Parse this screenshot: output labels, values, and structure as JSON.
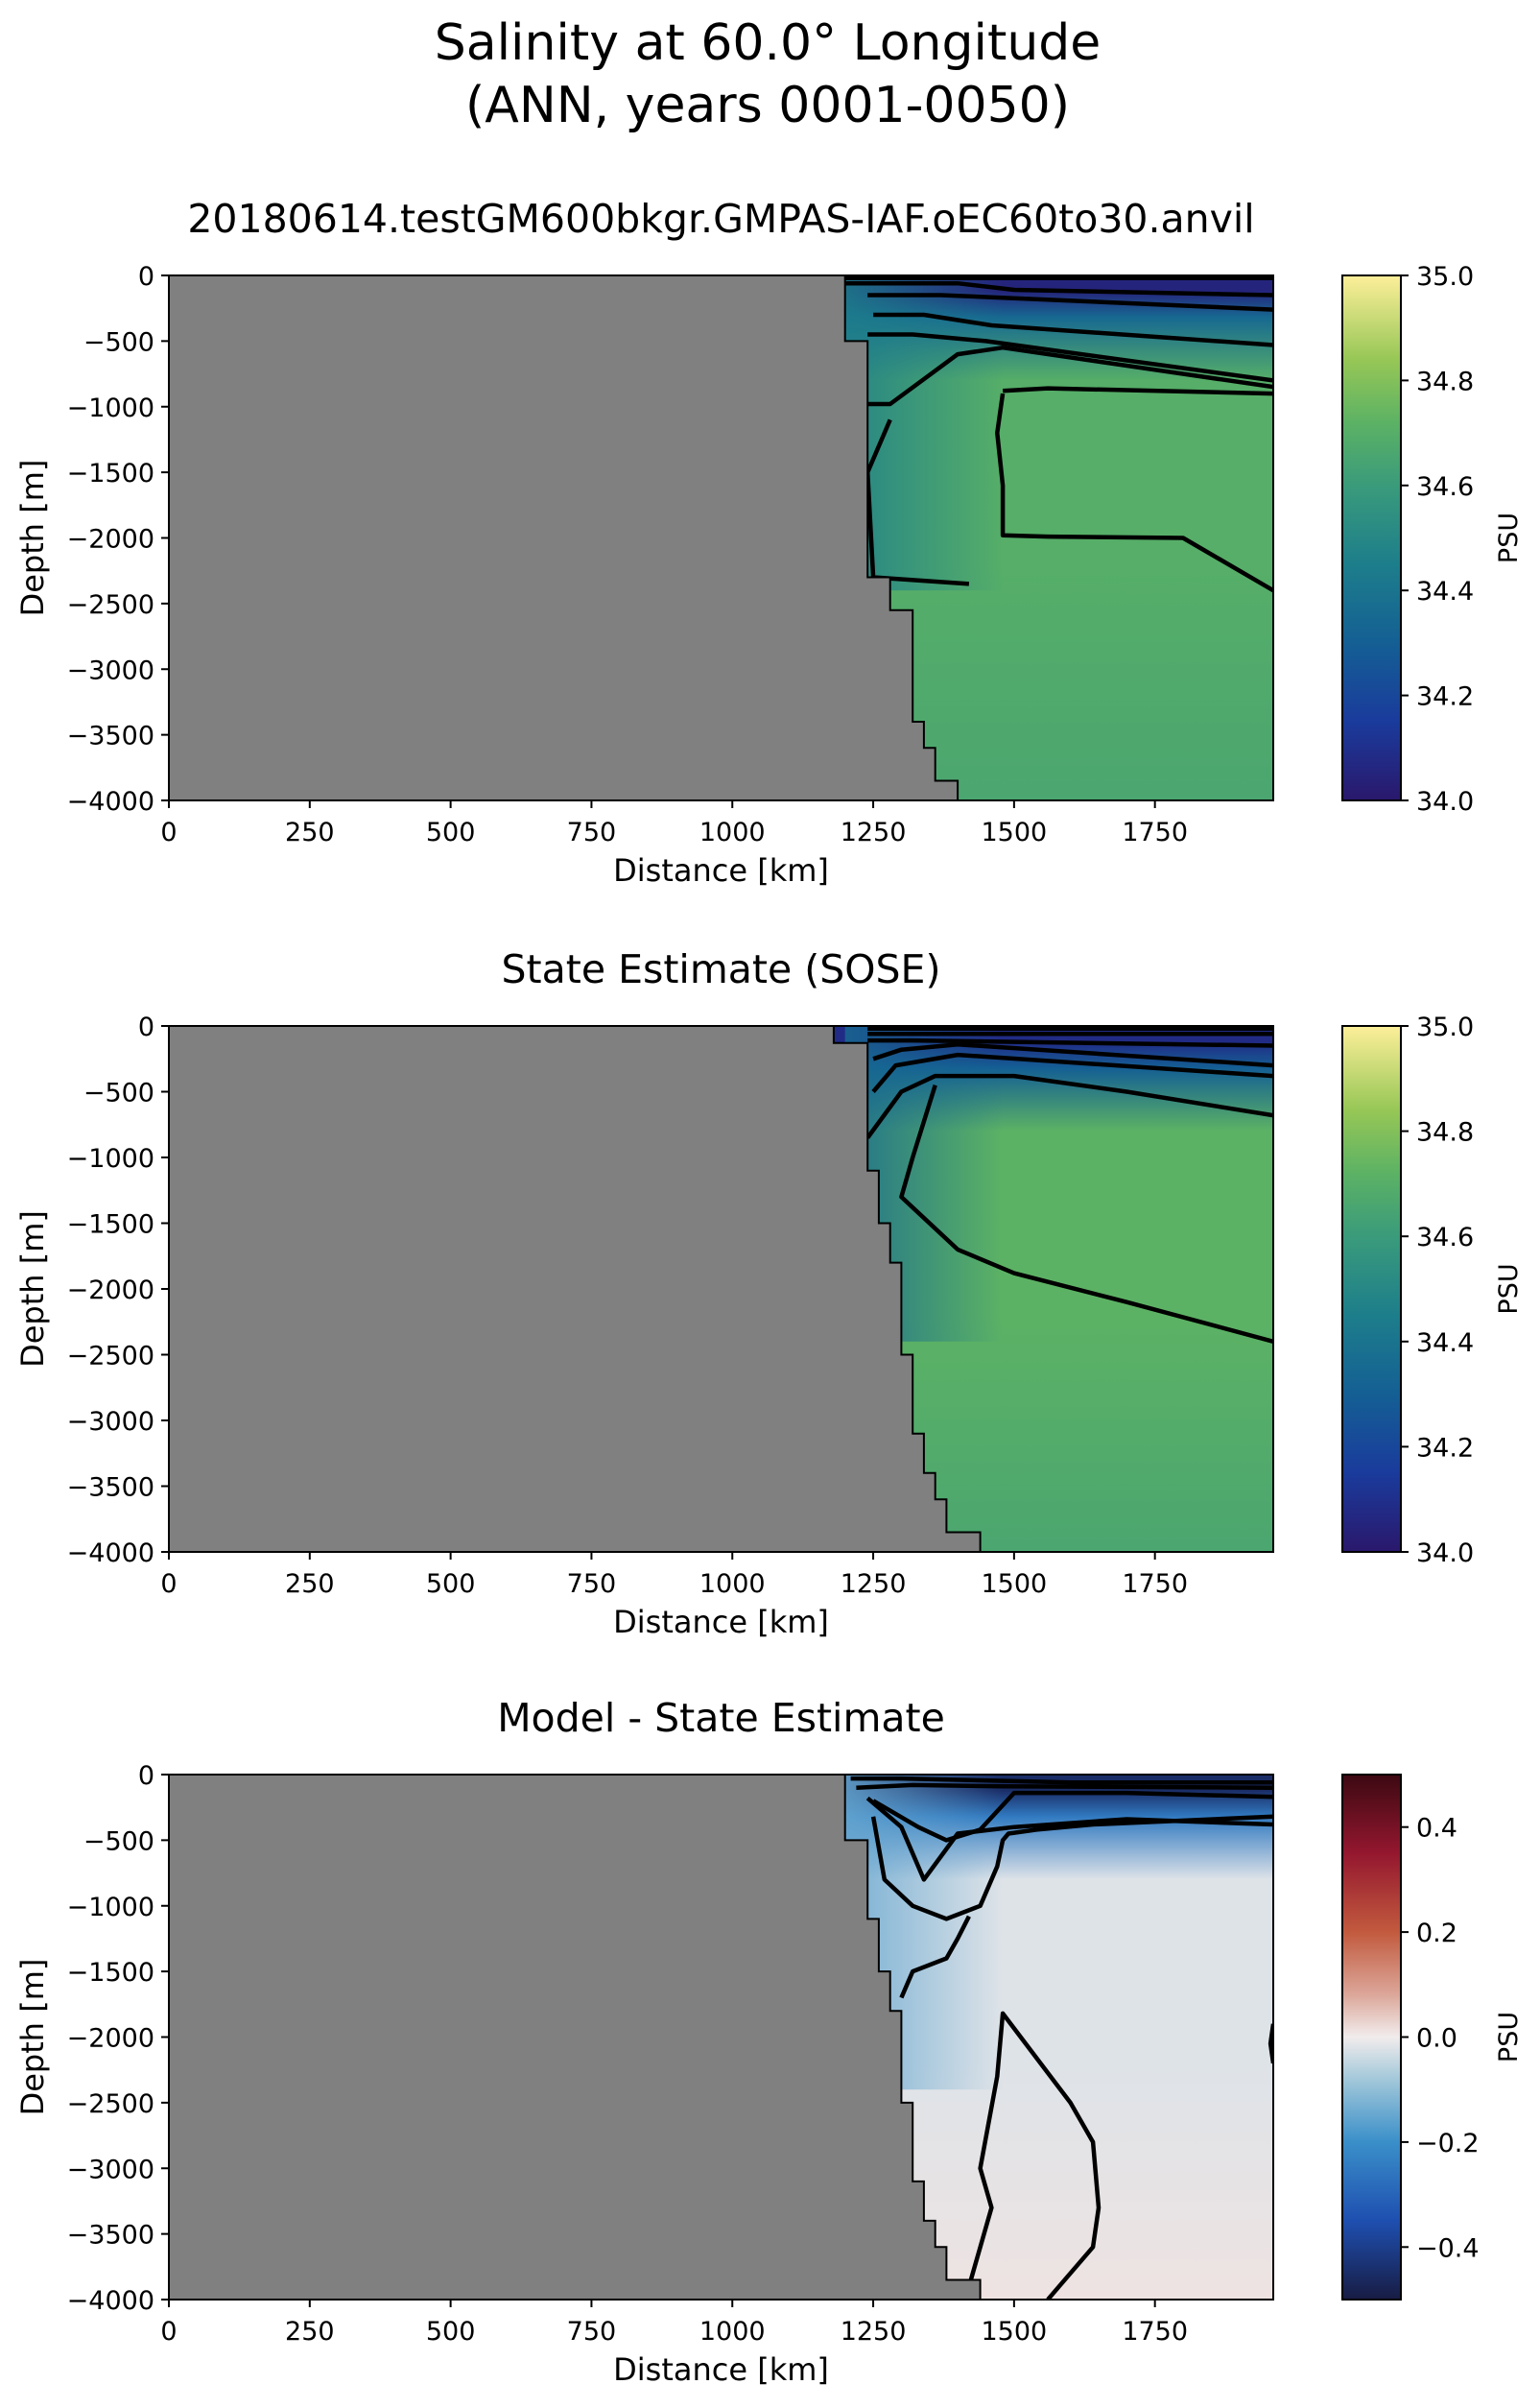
{
  "figure": {
    "title_line1": "Salinity at 60.0° Longitude",
    "title_line2": "(ANN, years 0001-0050)"
  },
  "chart_data": [
    {
      "type": "heatmap",
      "title": "20180614.testGM600bkgr.GMPAS-IAF.oEC60to30.anvil",
      "xlabel": "Distance [km]",
      "ylabel": "Depth [m]",
      "xlim": [
        0,
        1960
      ],
      "ylim": [
        -4000,
        0
      ],
      "xticks": [
        0,
        250,
        500,
        750,
        1000,
        1250,
        1500,
        1750
      ],
      "yticks": [
        0,
        -500,
        -1000,
        -1500,
        -2000,
        -2500,
        -3000,
        -3500,
        -4000
      ],
      "colormap": "haline",
      "colorbar": {
        "label": "PSU",
        "vmin": 34.0,
        "vmax": 35.0,
        "ticks": [
          34.0,
          34.2,
          34.4,
          34.6,
          34.8,
          35.0
        ]
      },
      "land_color": "#808080",
      "bathymetry": {
        "distance_km": [
          1200,
          1200,
          1240,
          1240,
          1280,
          1280,
          1320,
          1320,
          1340,
          1340,
          1360,
          1360,
          1400,
          1400
        ],
        "depth_m": [
          0,
          -500,
          -500,
          -2300,
          -2300,
          -2550,
          -2550,
          -3400,
          -3400,
          -3600,
          -3600,
          -3850,
          -3850,
          -4000
        ]
      },
      "field": {
        "surface_value": 34.05,
        "thermocline_value": 34.35,
        "interior_value": 34.7,
        "bottom_value": 34.66,
        "shelf_value": 34.45
      },
      "contours": [
        {
          "distance_km": [
            1200,
            1350,
            1960
          ],
          "depth_m": [
            -20,
            -20,
            -20
          ]
        },
        {
          "distance_km": [
            1200,
            1400,
            1500,
            1960
          ],
          "depth_m": [
            -60,
            -60,
            -110,
            -150
          ]
        },
        {
          "distance_km": [
            1240,
            1370,
            1480,
            1960
          ],
          "depth_m": [
            -150,
            -150,
            -170,
            -260
          ]
        },
        {
          "distance_km": [
            1250,
            1340,
            1460,
            1960
          ],
          "depth_m": [
            -300,
            -300,
            -380,
            -530
          ]
        },
        {
          "distance_km": [
            1240,
            1320,
            1450,
            1960
          ],
          "depth_m": [
            -450,
            -450,
            -500,
            -800
          ]
        },
        {
          "distance_km": [
            1240,
            1280,
            1400,
            1480,
            1960
          ],
          "depth_m": [
            -980,
            -980,
            -600,
            -550,
            -850
          ]
        },
        {
          "distance_km": [
            1280,
            1240,
            1250,
            1420
          ],
          "depth_m": [
            -1100,
            -1500,
            -2300,
            -2350
          ]
        },
        {
          "distance_km": [
            1480,
            1470,
            1480,
            1480,
            1560,
            1800,
            1960
          ],
          "depth_m": [
            -900,
            -1200,
            -1600,
            -1980,
            -1990,
            -2000,
            -2400
          ]
        },
        {
          "distance_km": [
            1480,
            1560,
            1960
          ],
          "depth_m": [
            -880,
            -860,
            -900
          ]
        }
      ]
    },
    {
      "type": "heatmap",
      "title": "State Estimate (SOSE)",
      "xlabel": "Distance [km]",
      "ylabel": "Depth [m]",
      "xlim": [
        0,
        1960
      ],
      "ylim": [
        -4000,
        0
      ],
      "xticks": [
        0,
        250,
        500,
        750,
        1000,
        1250,
        1500,
        1750
      ],
      "yticks": [
        0,
        -500,
        -1000,
        -1500,
        -2000,
        -2500,
        -3000,
        -3500,
        -4000
      ],
      "colormap": "haline",
      "colorbar": {
        "label": "PSU",
        "vmin": 34.0,
        "vmax": 35.0,
        "ticks": [
          34.0,
          34.2,
          34.4,
          34.6,
          34.8,
          35.0
        ]
      },
      "land_color": "#808080",
      "bathymetry": {
        "distance_km": [
          1180,
          1180,
          1240,
          1240,
          1260,
          1260,
          1280,
          1280,
          1300,
          1300,
          1320,
          1320,
          1340,
          1340,
          1360,
          1360,
          1380,
          1380,
          1440,
          1440
        ],
        "depth_m": [
          0,
          -130,
          -130,
          -1100,
          -1100,
          -1500,
          -1500,
          -1800,
          -1800,
          -2500,
          -2500,
          -3100,
          -3100,
          -3400,
          -3400,
          -3600,
          -3600,
          -3850,
          -3850,
          -4000
        ]
      },
      "field": {
        "surface_value": 34.08,
        "thermocline_value": 34.3,
        "interior_value": 34.72,
        "bottom_value": 34.66,
        "shelf_value": 34.35
      },
      "contours": [
        {
          "distance_km": [
            1240,
            1300,
            1960
          ],
          "depth_m": [
            -20,
            -20,
            -20
          ]
        },
        {
          "distance_km": [
            1240,
            1310,
            1960
          ],
          "depth_m": [
            -60,
            -60,
            -60
          ]
        },
        {
          "distance_km": [
            1240,
            1320,
            1960
          ],
          "depth_m": [
            -110,
            -110,
            -150
          ]
        },
        {
          "distance_km": [
            1250,
            1300,
            1400,
            1960
          ],
          "depth_m": [
            -250,
            -180,
            -140,
            -300
          ]
        },
        {
          "distance_km": [
            1250,
            1290,
            1400,
            1960
          ],
          "depth_m": [
            -500,
            -300,
            -220,
            -380
          ]
        },
        {
          "distance_km": [
            1240,
            1300,
            1360,
            1500,
            1700,
            1960
          ],
          "depth_m": [
            -850,
            -500,
            -380,
            -380,
            -500,
            -680
          ]
        },
        {
          "distance_km": [
            1360,
            1320,
            1300,
            1400,
            1500,
            1700,
            1960
          ],
          "depth_m": [
            -450,
            -1000,
            -1300,
            -1700,
            -1880,
            -2100,
            -2400
          ]
        }
      ]
    },
    {
      "type": "heatmap",
      "title": "Model - State Estimate",
      "xlabel": "Distance [km]",
      "ylabel": "Depth [m]",
      "xlim": [
        0,
        1960
      ],
      "ylim": [
        -4000,
        0
      ],
      "xticks": [
        0,
        250,
        500,
        750,
        1000,
        1250,
        1500,
        1750
      ],
      "yticks": [
        0,
        -500,
        -1000,
        -1500,
        -2000,
        -2500,
        -3000,
        -3500,
        -4000
      ],
      "colormap": "balance",
      "colorbar": {
        "label": "PSU",
        "vmin": -0.5,
        "vmax": 0.5,
        "ticks": [
          -0.4,
          -0.2,
          0.0,
          0.2,
          0.4
        ]
      },
      "land_color": "#808080",
      "bathymetry": {
        "distance_km": [
          1200,
          1200,
          1240,
          1240,
          1260,
          1260,
          1280,
          1280,
          1300,
          1300,
          1320,
          1320,
          1340,
          1340,
          1360,
          1360,
          1380,
          1380,
          1440,
          1440
        ],
        "depth_m": [
          0,
          -500,
          -500,
          -1100,
          -1100,
          -1500,
          -1500,
          -1800,
          -1800,
          -2500,
          -2500,
          -3100,
          -3100,
          -3400,
          -3400,
          -3600,
          -3600,
          -3850,
          -3850,
          -4000
        ]
      },
      "field": {
        "surface_value": -0.45,
        "thermocline_value": -0.25,
        "interior_value": -0.02,
        "bottom_value": 0.01,
        "shelf_value": -0.15
      },
      "contours": [
        {
          "distance_km": [
            1210,
            1300,
            1600,
            1960
          ],
          "depth_m": [
            -30,
            -30,
            -60,
            -60
          ]
        },
        {
          "distance_km": [
            1220,
            1320,
            1480,
            1960
          ],
          "depth_m": [
            -100,
            -80,
            -90,
            -100
          ]
        },
        {
          "distance_km": [
            1250,
            1330,
            1380,
            1440,
            1500,
            1700,
            1960
          ],
          "depth_m": [
            -200,
            -400,
            -500,
            -420,
            -140,
            -140,
            -170
          ]
        },
        {
          "distance_km": [
            1240,
            1300,
            1340,
            1400,
            1500,
            1700,
            1960
          ],
          "depth_m": [
            -180,
            -400,
            -800,
            -450,
            -400,
            -340,
            -380
          ]
        },
        {
          "distance_km": [
            1250,
            1270,
            1320,
            1380,
            1440,
            1470,
            1480,
            1490,
            1540,
            1640,
            1960
          ],
          "depth_m": [
            -320,
            -800,
            -1000,
            -1100,
            -1000,
            -700,
            -500,
            -450,
            -420,
            -380,
            -320
          ]
        },
        {
          "distance_km": [
            1300,
            1320,
            1380,
            1400,
            1420
          ],
          "depth_m": [
            -1700,
            -1500,
            -1400,
            -1250,
            -1080
          ]
        },
        {
          "distance_km": [
            1420,
            1460,
            1440,
            1470,
            1480,
            1600,
            1640,
            1650,
            1640,
            1580,
            1560
          ],
          "depth_m": [
            -3900,
            -3300,
            -3000,
            -2300,
            -1820,
            -2500,
            -2800,
            -3300,
            -3600,
            -3900,
            -4000
          ]
        },
        {
          "distance_km": [
            1960,
            1955,
            1960
          ],
          "depth_m": [
            -1900,
            -2050,
            -2200
          ]
        }
      ]
    }
  ]
}
